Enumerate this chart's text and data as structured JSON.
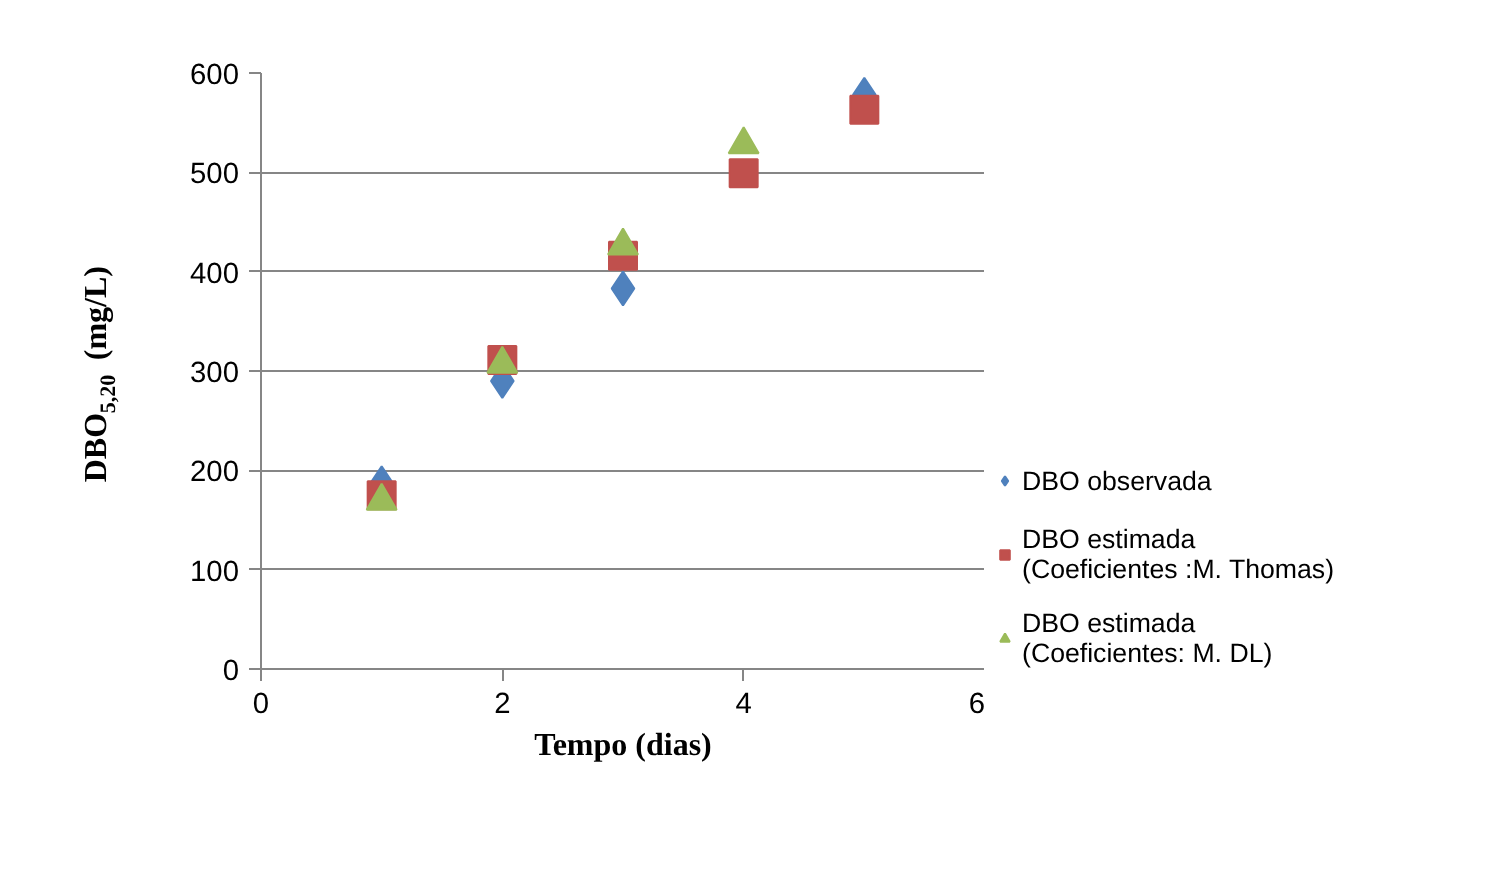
{
  "chart_data": {
    "type": "scatter",
    "xlabel": "Tempo (dias)",
    "ylabel": "DBO$_{5,20}$ (mg/L)",
    "x": [
      1,
      2,
      3,
      4,
      5
    ],
    "series": [
      {
        "name": "DBO observada",
        "color": "#4f81bd",
        "marker": "diamond",
        "values": [
          187,
          290,
          383,
          null,
          578
        ]
      },
      {
        "name": "DBO estimada\n(Coeficientes :M. Thomas)",
        "color": "#c0504d",
        "marker": "square",
        "values": [
          175,
          311,
          416,
          499,
          563
        ]
      },
      {
        "name": "DBO estimada\n(Coeficientes: M. DL)",
        "color": "#9bbb59",
        "marker": "triangle",
        "values": [
          169,
          307,
          426,
          528,
          null
        ]
      }
    ],
    "xlim": [
      0,
      6
    ],
    "xticks": [
      0,
      2,
      4,
      6
    ],
    "ylim": [
      0,
      600
    ],
    "yticks": [
      0,
      100,
      200,
      300,
      400,
      500,
      600
    ],
    "grid": "y",
    "legend": "right"
  }
}
